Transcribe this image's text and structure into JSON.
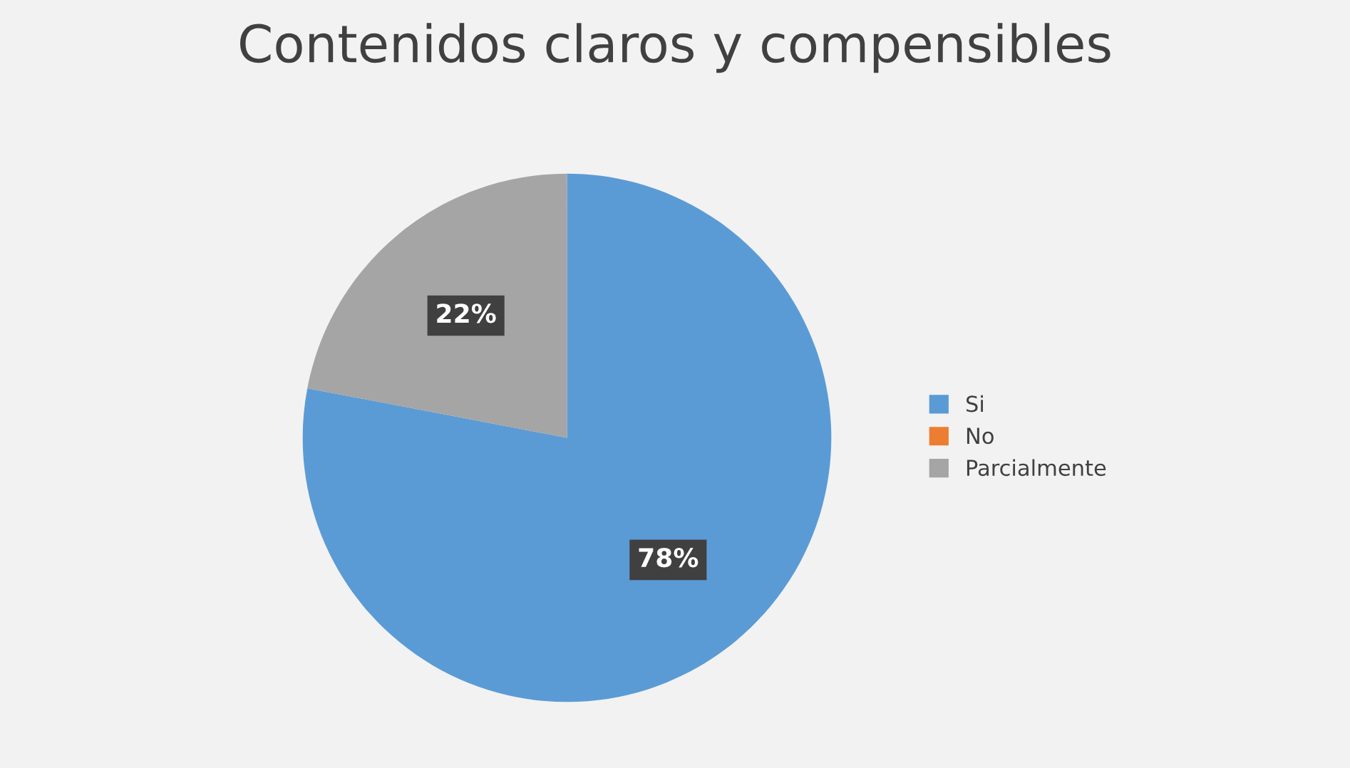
{
  "chart_data": {
    "type": "pie",
    "title": "Contenidos claros y compensibles",
    "categories": [
      "Si",
      "No",
      "Parcialmente"
    ],
    "values": [
      78,
      0,
      22
    ],
    "colors": [
      "#5b9bd5",
      "#ed7d31",
      "#a5a5a5"
    ],
    "value_labels": [
      "78%",
      null,
      "22%"
    ],
    "legend": "right"
  }
}
